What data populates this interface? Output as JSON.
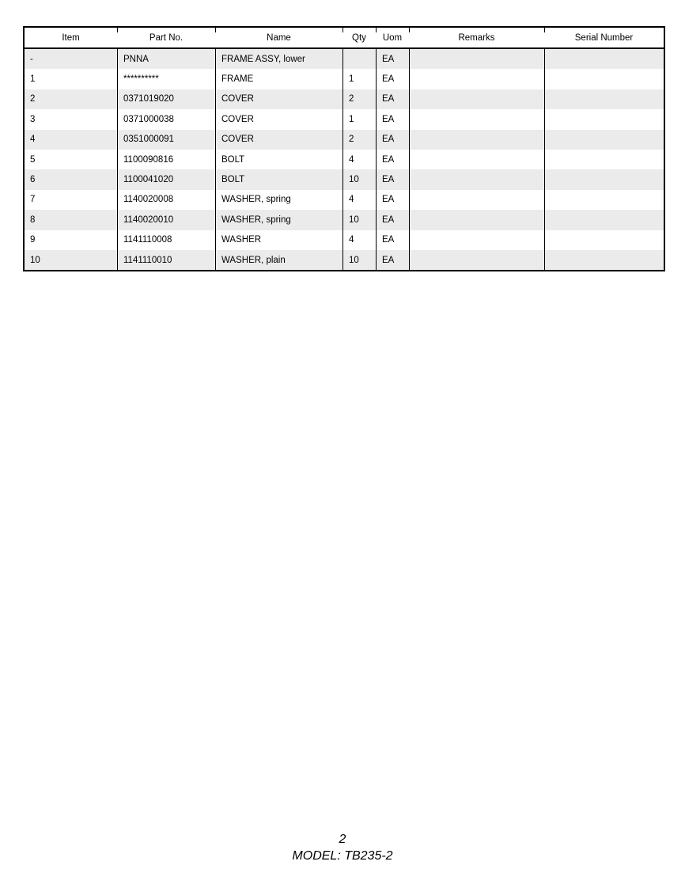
{
  "table": {
    "columns": [
      "Item",
      "Part No.",
      "Name",
      "Qty",
      "Uom",
      "Remarks",
      "Serial Number"
    ],
    "rows": [
      {
        "item": "-",
        "part_no": "PNNA",
        "name": "FRAME ASSY, lower",
        "qty": "",
        "uom": "EA",
        "remarks": "",
        "serial_number": ""
      },
      {
        "item": "1",
        "part_no": "**********",
        "name": "FRAME",
        "qty": "1",
        "uom": "EA",
        "remarks": "",
        "serial_number": ""
      },
      {
        "item": "2",
        "part_no": "0371019020",
        "name": "COVER",
        "qty": "2",
        "uom": "EA",
        "remarks": "",
        "serial_number": ""
      },
      {
        "item": "3",
        "part_no": "0371000038",
        "name": "COVER",
        "qty": "1",
        "uom": "EA",
        "remarks": "",
        "serial_number": ""
      },
      {
        "item": "4",
        "part_no": "0351000091",
        "name": "COVER",
        "qty": "2",
        "uom": "EA",
        "remarks": "",
        "serial_number": ""
      },
      {
        "item": "5",
        "part_no": "1100090816",
        "name": "BOLT",
        "qty": "4",
        "uom": "EA",
        "remarks": "",
        "serial_number": ""
      },
      {
        "item": "6",
        "part_no": "1100041020",
        "name": "BOLT",
        "qty": "10",
        "uom": "EA",
        "remarks": "",
        "serial_number": ""
      },
      {
        "item": "7",
        "part_no": "1140020008",
        "name": "WASHER, spring",
        "qty": "4",
        "uom": "EA",
        "remarks": "",
        "serial_number": ""
      },
      {
        "item": "8",
        "part_no": "1140020010",
        "name": "WASHER, spring",
        "qty": "10",
        "uom": "EA",
        "remarks": "",
        "serial_number": ""
      },
      {
        "item": "9",
        "part_no": "1141110008",
        "name": "WASHER",
        "qty": "4",
        "uom": "EA",
        "remarks": "",
        "serial_number": ""
      },
      {
        "item": "10",
        "part_no": "1141110010",
        "name": "WASHER, plain",
        "qty": "10",
        "uom": "EA",
        "remarks": "",
        "serial_number": ""
      }
    ],
    "shaded_row_color": "#ebebeb",
    "border_color": "#000000"
  },
  "footer": {
    "page_number": "2",
    "model_label": "MODEL: TB235-2"
  }
}
